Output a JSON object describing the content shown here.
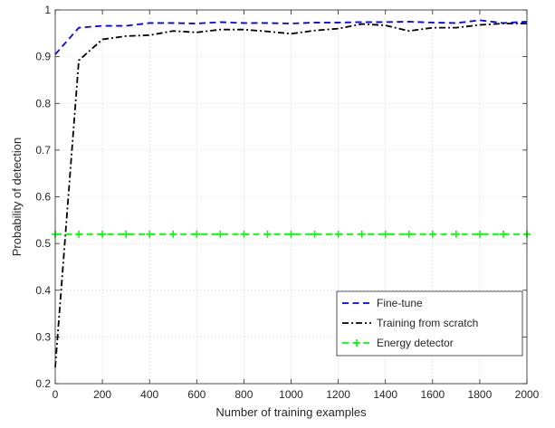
{
  "chart_data": {
    "type": "line",
    "title": "",
    "xlabel": "Number of training examples",
    "ylabel": "Probability of detection",
    "xlim": [
      0,
      2000
    ],
    "ylim": [
      0.2,
      1
    ],
    "xticks": [
      0,
      200,
      400,
      600,
      800,
      1000,
      1200,
      1400,
      1600,
      1800,
      2000
    ],
    "yticks": [
      0.2,
      0.3,
      0.4,
      0.5,
      0.6,
      0.7,
      0.8,
      0.9,
      1
    ],
    "xtick_labels": [
      "0",
      "200",
      "400",
      "600",
      "800",
      "1000",
      "1200",
      "1400",
      "1600",
      "1800",
      "2000"
    ],
    "ytick_labels": [
      "0.2",
      "0.3",
      "0.4",
      "0.5",
      "0.6",
      "0.7",
      "0.8",
      "0.9",
      "1"
    ],
    "grid": true,
    "legend_position": "lower-right",
    "x": [
      0,
      100,
      200,
      300,
      400,
      500,
      600,
      700,
      800,
      900,
      1000,
      1100,
      1200,
      1300,
      1400,
      1500,
      1600,
      1700,
      1800,
      1900,
      2000
    ],
    "series": [
      {
        "name": "Fine-tune",
        "color": "#0000ff",
        "style": "dashed",
        "marker": "none",
        "values": [
          0.905,
          0.962,
          0.966,
          0.966,
          0.972,
          0.972,
          0.971,
          0.974,
          0.972,
          0.972,
          0.971,
          0.973,
          0.973,
          0.974,
          0.974,
          0.975,
          0.973,
          0.972,
          0.978,
          0.972,
          0.975
        ]
      },
      {
        "name": "Training from scratch",
        "color": "#000000",
        "style": "dashdot",
        "marker": "none",
        "values": [
          0.235,
          0.892,
          0.937,
          0.944,
          0.946,
          0.955,
          0.952,
          0.958,
          0.958,
          0.954,
          0.949,
          0.956,
          0.96,
          0.97,
          0.967,
          0.955,
          0.962,
          0.962,
          0.968,
          0.971,
          0.971
        ]
      },
      {
        "name": "Energy detector",
        "color": "#00ff00",
        "style": "dashed",
        "marker": "plus",
        "values": [
          0.52,
          0.52,
          0.52,
          0.52,
          0.52,
          0.52,
          0.52,
          0.52,
          0.52,
          0.52,
          0.52,
          0.52,
          0.52,
          0.52,
          0.52,
          0.52,
          0.52,
          0.52,
          0.52,
          0.52,
          0.52
        ]
      }
    ]
  }
}
